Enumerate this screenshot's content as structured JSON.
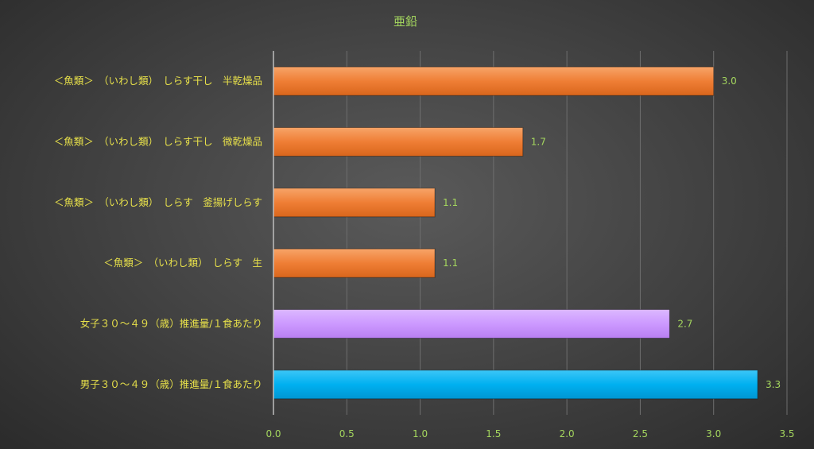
{
  "chart_data": {
    "type": "bar",
    "orientation": "horizontal",
    "title": "亜鉛",
    "xlabel": "",
    "ylabel": "",
    "categories": [
      "＜魚類＞　（いわし類）　しらす干し　半乾燥品",
      "＜魚類＞　（いわし類）　しらす干し　微乾燥品",
      "＜魚類＞　（いわし類）　しらす　釜揚げしらす",
      "＜魚類＞　（いわし類）　しらす　生",
      "女子３０～４９（歳）推進量/１食あたり",
      "男子３０～４９（歳）推進量/１食あたり"
    ],
    "values": [
      3.0,
      1.7,
      1.1,
      1.1,
      2.7,
      3.3
    ],
    "data_labels": [
      "3.0",
      "1.7",
      "1.1",
      "1.1",
      "2.7",
      "3.3"
    ],
    "colors": [
      "#ed7d31",
      "#ed7d31",
      "#ed7d31",
      "#ed7d31",
      "#cc99ff",
      "#00b0f0"
    ],
    "xlim": [
      0,
      3.5
    ],
    "x_ticks": [
      "0.0",
      "0.5",
      "1.0",
      "1.5",
      "2.0",
      "2.5",
      "3.0",
      "3.5"
    ],
    "grid": true,
    "legend": "none"
  }
}
